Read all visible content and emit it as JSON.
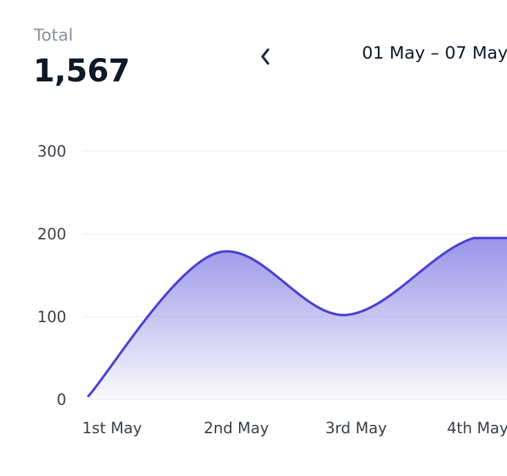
{
  "summary": {
    "total_label": "Total",
    "total_value": "1,567"
  },
  "navigation": {
    "prev_icon": "chevron-left-icon",
    "date_range": "01 May – 07 May"
  },
  "colors": {
    "line": "#4a41d1",
    "fill_top": "#8f88e6",
    "grid": "#e3ecef",
    "axis_text": "#3b3f47"
  },
  "chart_data": {
    "type": "area",
    "x": [
      "1st May",
      "2nd May",
      "3rd May",
      "4th May"
    ],
    "y_points": [
      4,
      177,
      102,
      195
    ],
    "yticks": [
      0,
      100,
      200,
      300
    ],
    "ylim": [
      0,
      300
    ],
    "grid": true,
    "xlabel": "",
    "ylabel": ""
  }
}
